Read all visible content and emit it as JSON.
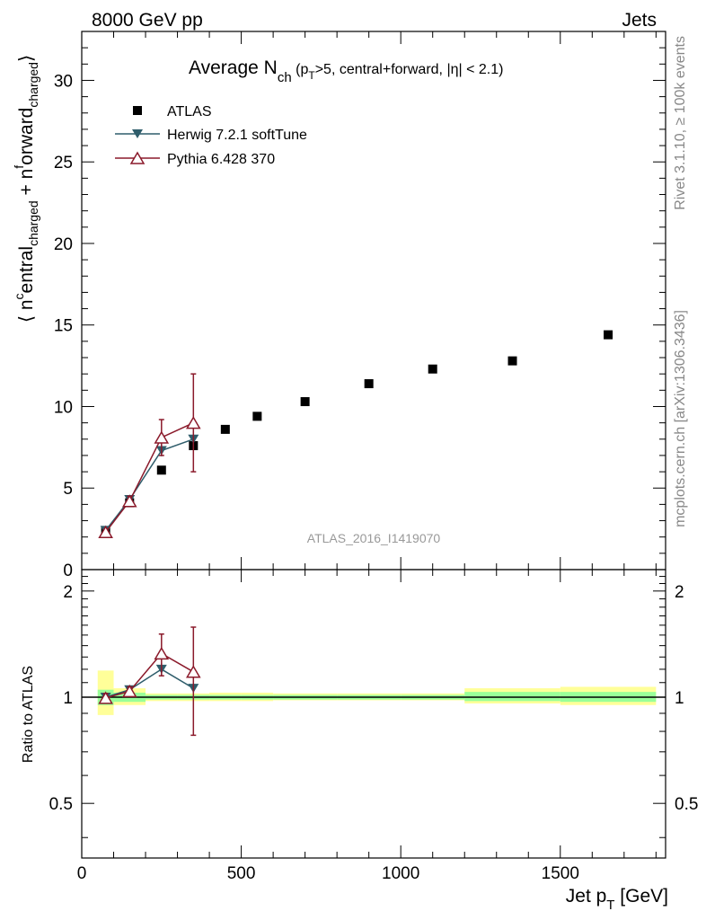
{
  "header": {
    "left": "8000 GeV pp",
    "right": "Jets"
  },
  "side_labels": {
    "rivet": "Rivet 3.1.10, ≥ 100k events",
    "mcplots": "mcplots.cern.ch [arXiv:1306.3436]"
  },
  "watermark": "ATLAS_2016_I1419070",
  "colors": {
    "atlas": "#000000",
    "herwig": "#2f5d6b",
    "pythia": "#8b1a2b",
    "band_inner": "#99ff99",
    "band_outer": "#ffff99"
  },
  "chart_data": [
    {
      "type": "scatter",
      "panel": "main",
      "title": {
        "main": "Average N",
        "sub": "ch",
        "rest": " (p",
        "sub2": "T",
        "tail": ">5, central+forward, |η| < 2.1)"
      },
      "ylabel": "⟨ n^central_charged + n^forward_charged ⟩",
      "ylabel_parts": {
        "pre": "⟨ n",
        "sup1": "c",
        "mid1": "entral",
        "sub1": "charged",
        "mid2": " + n",
        "sup2": "f",
        "mid3": "orward",
        "sub2": "charged",
        "post": "⟩"
      },
      "xlim": [
        0,
        1830
      ],
      "ylim": [
        0,
        33
      ],
      "yticks": [
        0,
        5,
        10,
        15,
        20,
        25,
        30
      ],
      "legend_position": "top-left",
      "series": [
        {
          "name": "ATLAS",
          "marker": "square",
          "points": [
            {
              "x": 75,
              "y": 2.4
            },
            {
              "x": 150,
              "y": 4.1
            },
            {
              "x": 250,
              "y": 6.1
            },
            {
              "x": 350,
              "y": 7.6
            },
            {
              "x": 450,
              "y": 8.6
            },
            {
              "x": 550,
              "y": 9.4
            },
            {
              "x": 700,
              "y": 10.3
            },
            {
              "x": 900,
              "y": 11.4
            },
            {
              "x": 1100,
              "y": 12.3
            },
            {
              "x": 1350,
              "y": 12.8
            },
            {
              "x": 1650,
              "y": 14.4
            }
          ]
        },
        {
          "name": "Herwig 7.2.1 softTune",
          "marker": "triangle-down-filled",
          "points": [
            {
              "x": 75,
              "y": 2.4,
              "err": 0.1
            },
            {
              "x": 150,
              "y": 4.3,
              "err": 0.2
            },
            {
              "x": 250,
              "y": 7.3,
              "err": 0.35
            },
            {
              "x": 350,
              "y": 8.0,
              "err": 0.2
            }
          ]
        },
        {
          "name": "Pythia 6.428 370",
          "marker": "triangle-up-open",
          "points": [
            {
              "x": 75,
              "y": 2.3,
              "err": 0.15
            },
            {
              "x": 150,
              "y": 4.2,
              "err": 0.3
            },
            {
              "x": 250,
              "y": 8.1,
              "err": 1.1
            },
            {
              "x": 350,
              "y": 9.0,
              "err": 3.0
            }
          ]
        }
      ]
    },
    {
      "type": "scatter",
      "panel": "ratio",
      "ylabel": "Ratio to ATLAS",
      "xlabel": {
        "main": "Jet p",
        "sub": "T",
        "tail": " [GeV]"
      },
      "xlim": [
        0,
        1830
      ],
      "ylim": [
        0.35,
        2.3
      ],
      "yticks": [
        0.5,
        1,
        2
      ],
      "xticks": [
        0,
        500,
        1000,
        1500
      ],
      "bands": [
        {
          "x0": 50,
          "x1": 100,
          "inner": [
            0.95,
            1.05
          ],
          "outer": [
            0.89,
            1.19
          ]
        },
        {
          "x0": 100,
          "x1": 200,
          "inner": [
            0.97,
            1.03
          ],
          "outer": [
            0.95,
            1.06
          ]
        },
        {
          "x0": 200,
          "x1": 300,
          "inner": [
            0.985,
            1.015
          ],
          "outer": [
            0.975,
            1.025
          ]
        },
        {
          "x0": 300,
          "x1": 400,
          "inner": [
            0.985,
            1.015
          ],
          "outer": [
            0.975,
            1.025
          ]
        },
        {
          "x0": 400,
          "x1": 500,
          "inner": [
            0.985,
            1.015
          ],
          "outer": [
            0.975,
            1.03
          ]
        },
        {
          "x0": 500,
          "x1": 600,
          "inner": [
            0.985,
            1.015
          ],
          "outer": [
            0.975,
            1.03
          ]
        },
        {
          "x0": 600,
          "x1": 800,
          "inner": [
            0.985,
            1.015
          ],
          "outer": [
            0.98,
            1.025
          ]
        },
        {
          "x0": 800,
          "x1": 1000,
          "inner": [
            0.985,
            1.015
          ],
          "outer": [
            0.98,
            1.025
          ]
        },
        {
          "x0": 1000,
          "x1": 1200,
          "inner": [
            0.985,
            1.015
          ],
          "outer": [
            0.98,
            1.025
          ]
        },
        {
          "x0": 1200,
          "x1": 1500,
          "inner": [
            0.975,
            1.035
          ],
          "outer": [
            0.96,
            1.06
          ]
        },
        {
          "x0": 1500,
          "x1": 1800,
          "inner": [
            0.97,
            1.035
          ],
          "outer": [
            0.95,
            1.07
          ]
        }
      ],
      "series": [
        {
          "name": "Herwig 7.2.1 softTune",
          "points": [
            {
              "x": 75,
              "y": 1.0,
              "err": 0.03
            },
            {
              "x": 150,
              "y": 1.05,
              "err": 0.02
            },
            {
              "x": 250,
              "y": 1.2,
              "err": 0.05
            },
            {
              "x": 350,
              "y": 1.06,
              "err": 0.03
            }
          ]
        },
        {
          "name": "Pythia 6.428 370",
          "points": [
            {
              "x": 75,
              "y": 0.995,
              "err": 0.03
            },
            {
              "x": 150,
              "y": 1.04,
              "err": 0.03
            },
            {
              "x": 250,
              "y": 1.33,
              "err": 0.18
            },
            {
              "x": 350,
              "y": 1.18,
              "err": 0.4
            }
          ]
        }
      ]
    }
  ]
}
